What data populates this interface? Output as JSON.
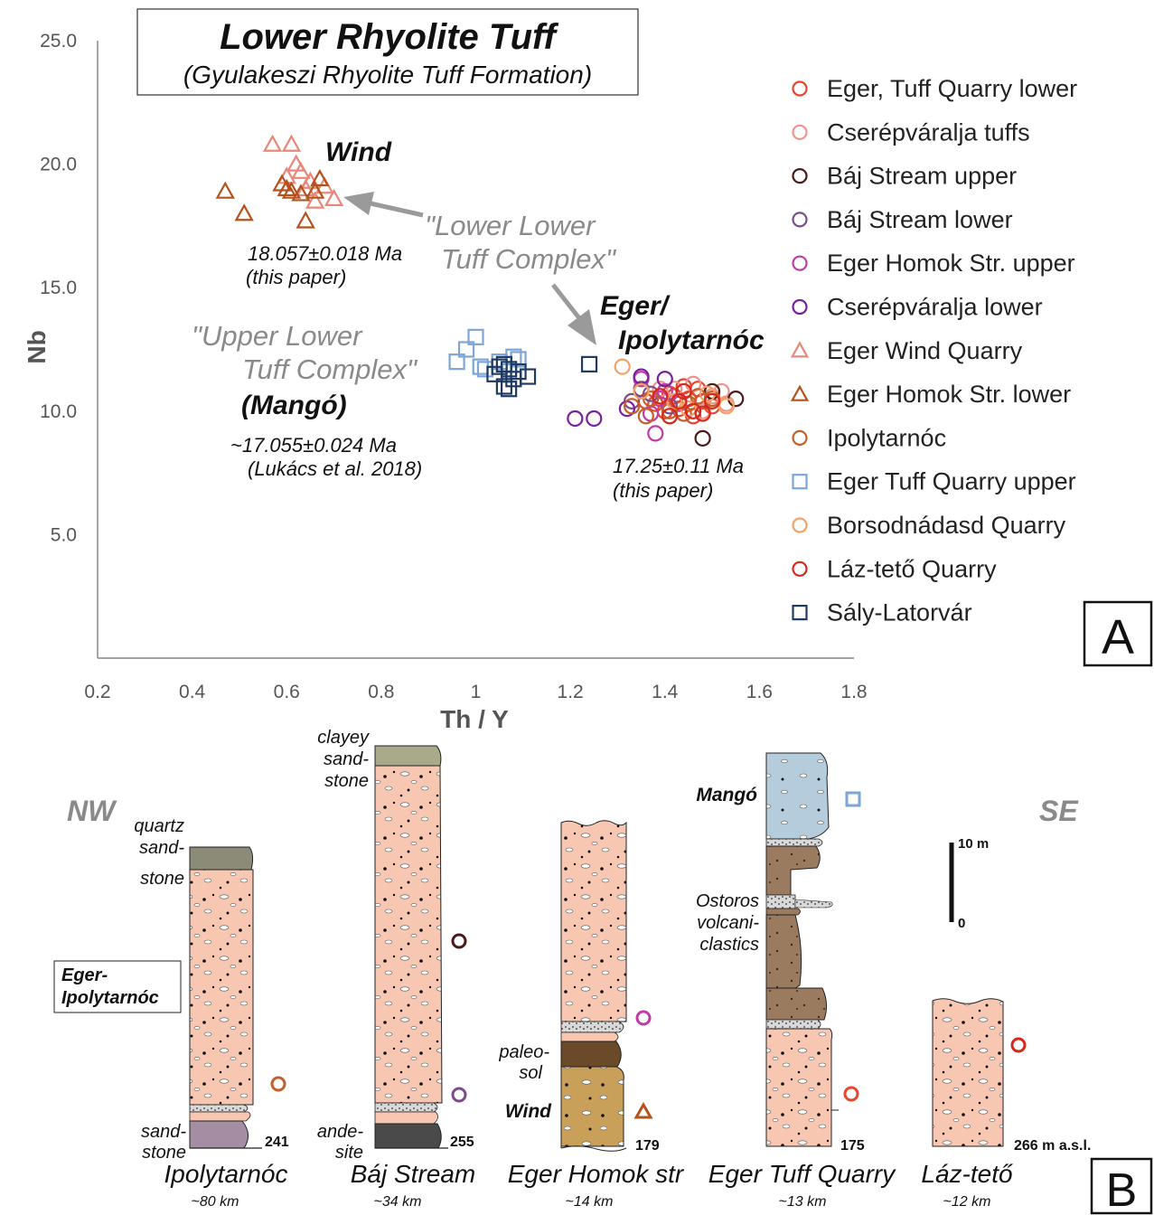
{
  "panel_a": {
    "title": "Lower Rhyolite Tuff",
    "subtitle": "(Gyulakeszi Rhyolite Tuff Formation)",
    "xlabel": "Th / Y",
    "ylabel": "Nb",
    "x_ticks": [
      "0.2",
      "0.4",
      "0.6",
      "0.8",
      "1",
      "1.2",
      "1.4",
      "1.6",
      "1.8"
    ],
    "y_ticks": [
      "5.0",
      "10.0",
      "15.0",
      "20.0",
      "25.0"
    ],
    "panel_label": "A",
    "annotations": {
      "wind": "Wind",
      "wind_age": "18.057±0.018 Ma",
      "wind_ref": "(this paper)",
      "llt_1": "\"Lower Lower",
      "llt_2": "Tuff Complex\"",
      "ult_1": "\"Upper Lower",
      "ult_2": "Tuff Complex\"",
      "mango": "(Mangó)",
      "mango_age": "~17.055±0.024  Ma",
      "mango_ref": "(Lukács et al. 2018)",
      "eger_1": "Eger/",
      "eger_2": "Ipolytarnóc",
      "eger_age": "17.25±0.11  Ma",
      "eger_ref": "(this paper)"
    }
  },
  "chart_data": {
    "type": "scatter",
    "title": "Lower Rhyolite Tuff",
    "subtitle": "(Gyulakeszi Rhyolite Tuff Formation)",
    "xlabel": "Th / Y",
    "ylabel": "Nb",
    "xlim": [
      0.2,
      1.8
    ],
    "ylim": [
      0,
      25
    ],
    "legend_position": "right",
    "series": [
      {
        "name": "Eger, Tuff Quarry lower",
        "marker": "circle",
        "color": "#e8452c",
        "points": [
          [
            1.38,
            10.3
          ],
          [
            1.41,
            10.7
          ],
          [
            1.43,
            10.1
          ],
          [
            1.45,
            10.5
          ],
          [
            1.47,
            10.9
          ],
          [
            1.5,
            10.2
          ],
          [
            1.46,
            9.8
          ],
          [
            1.42,
            10.6
          ],
          [
            1.48,
            10.4
          ],
          [
            1.4,
            10.0
          ],
          [
            1.44,
            11.0
          ],
          [
            1.36,
            10.4
          ]
        ]
      },
      {
        "name": "Cserépváralja tuffs",
        "marker": "circle",
        "color": "#f0938a",
        "points": [
          [
            1.42,
            10.9
          ],
          [
            1.46,
            11.1
          ],
          [
            1.5,
            10.6
          ],
          [
            1.53,
            10.3
          ],
          [
            1.39,
            10.9
          ],
          [
            1.48,
            10.0
          ],
          [
            1.52,
            10.8
          ]
        ]
      },
      {
        "name": "Báj Stream upper",
        "marker": "circle",
        "color": "#4a1a1a",
        "points": [
          [
            1.48,
            8.9
          ],
          [
            1.55,
            10.5
          ],
          [
            1.5,
            10.8
          ]
        ]
      },
      {
        "name": "Báj Stream lower",
        "marker": "circle",
        "color": "#7b4b8a",
        "points": [
          [
            1.33,
            10.4
          ],
          [
            1.37,
            10.7
          ],
          [
            1.41,
            10.2
          ],
          [
            1.35,
            10.9
          ]
        ]
      },
      {
        "name": "Eger Homok Str. upper",
        "marker": "circle",
        "color": "#c13ba4",
        "points": [
          [
            1.35,
            11.3
          ],
          [
            1.39,
            10.5
          ],
          [
            1.37,
            9.9
          ],
          [
            1.43,
            10.3
          ],
          [
            1.4,
            10.8
          ],
          [
            1.38,
            9.1
          ]
        ]
      },
      {
        "name": "Cserépváralja lower",
        "marker": "circle",
        "color": "#7a1fa0",
        "points": [
          [
            1.21,
            9.7
          ],
          [
            1.25,
            9.7
          ],
          [
            1.32,
            10.1
          ],
          [
            1.35,
            11.4
          ],
          [
            1.4,
            11.3
          ]
        ]
      },
      {
        "name": "Eger Wind Quarry",
        "marker": "triangle",
        "color": "#e8877a",
        "points": [
          [
            0.57,
            20.8
          ],
          [
            0.61,
            20.8
          ],
          [
            0.62,
            20.0
          ],
          [
            0.6,
            19.5
          ],
          [
            0.63,
            19.7
          ],
          [
            0.65,
            19.3
          ],
          [
            0.68,
            19.1
          ],
          [
            0.66,
            18.5
          ],
          [
            0.7,
            18.6
          ],
          [
            0.64,
            19.0
          ]
        ]
      },
      {
        "name": "Eger Homok Str. lower",
        "marker": "triangle",
        "color": "#b5521b",
        "points": [
          [
            0.47,
            18.9
          ],
          [
            0.51,
            18.0
          ],
          [
            0.59,
            19.2
          ],
          [
            0.61,
            18.9
          ],
          [
            0.63,
            18.8
          ],
          [
            0.64,
            17.7
          ],
          [
            0.67,
            19.4
          ],
          [
            0.6,
            19.0
          ],
          [
            0.66,
            18.9
          ]
        ]
      },
      {
        "name": "Ipolytarnóc",
        "marker": "circle",
        "color": "#c3602a",
        "points": [
          [
            1.33,
            10.2
          ],
          [
            1.37,
            10.5
          ],
          [
            1.41,
            10.0
          ],
          [
            1.45,
            10.3
          ],
          [
            1.5,
            10.5
          ],
          [
            1.36,
            9.8
          ],
          [
            1.44,
            9.9
          ],
          [
            1.47,
            10.6
          ]
        ]
      },
      {
        "name": "Eger Tuff Quarry upper",
        "marker": "square",
        "color": "#7ba6d6",
        "points": [
          [
            0.96,
            12.0
          ],
          [
            0.98,
            12.5
          ],
          [
            1.0,
            13.0
          ],
          [
            1.02,
            11.7
          ],
          [
            1.05,
            12.0
          ],
          [
            1.08,
            12.2
          ],
          [
            1.01,
            11.8
          ],
          [
            1.07,
            11.6
          ],
          [
            1.09,
            12.1
          ]
        ]
      },
      {
        "name": "Borsodnádasd Quarry",
        "marker": "circle",
        "color": "#f3a264",
        "points": [
          [
            1.31,
            11.8
          ],
          [
            1.35,
            10.8
          ],
          [
            1.42,
            10.4
          ],
          [
            1.49,
            10.7
          ],
          [
            1.45,
            10.1
          ],
          [
            1.53,
            10.2
          ]
        ]
      },
      {
        "name": "Láz-tető Quarry",
        "marker": "circle",
        "color": "#d6281b",
        "points": [
          [
            1.39,
            10.6
          ],
          [
            1.43,
            10.4
          ],
          [
            1.46,
            10.0
          ],
          [
            1.5,
            10.4
          ],
          [
            1.44,
            10.8
          ],
          [
            1.48,
            9.9
          ],
          [
            1.41,
            9.8
          ]
        ]
      },
      {
        "name": "Sály-Latorvár",
        "marker": "square",
        "color": "#1f3a63",
        "points": [
          [
            1.04,
            11.5
          ],
          [
            1.06,
            11.9
          ],
          [
            1.08,
            11.3
          ],
          [
            1.07,
            10.9
          ],
          [
            1.05,
            11.8
          ],
          [
            1.09,
            11.6
          ],
          [
            1.06,
            11.0
          ],
          [
            1.11,
            11.4
          ],
          [
            1.24,
            11.9
          ],
          [
            1.07,
            11.7
          ]
        ]
      }
    ]
  },
  "panel_b": {
    "panel_label": "B",
    "nw": "NW",
    "se": "SE",
    "scale_top": "10 m",
    "scale_bottom": "0",
    "box_label_1": "Eger-",
    "box_label_2": "Ipolytarnóc",
    "labels": {
      "quartz_1": "quartz",
      "quartz_2": "sand-",
      "quartz_3": "stone",
      "sand_1": "sand-",
      "sand_2": "stone",
      "clayey_1": "clayey",
      "clayey_2": "sand-",
      "clayey_3": "stone",
      "ande_1": "ande-",
      "ande_2": "site",
      "paleo_1": "paleo-",
      "paleo_2": "sol",
      "wind": "Wind",
      "mango": "Mangó",
      "ostoros_1": "Ostoros",
      "ostoros_2": "volcani-",
      "ostoros_3": "clastics"
    },
    "columns": [
      {
        "name": "Ipolytarnóc",
        "distance": "~80 km",
        "elevation": "241"
      },
      {
        "name": "Báj Stream",
        "distance": "~34 km",
        "elevation": "255"
      },
      {
        "name": "Eger Homok str",
        "distance": "~14 km",
        "elevation": "179"
      },
      {
        "name": "Eger Tuff Quarry",
        "distance": "~13 km",
        "elevation": "175"
      },
      {
        "name": "Láz-tető",
        "distance": "~12 km",
        "elevation": "266 m a.s.l."
      }
    ]
  },
  "colors": {
    "tuff": "#f7c7b2",
    "gray_sand": "#8b8b77",
    "clayey": "#a9a98c",
    "sandstone_purple": "#a58ea4",
    "andesite": "#4a4a4a",
    "paleosol": "#6b4a2a",
    "wind_tuff": "#c9a05a",
    "mango_blue": "#b5ccdd",
    "ostoros": "#9a7b5f",
    "axis": "#666666",
    "note_gray": "#8a8a8a"
  }
}
